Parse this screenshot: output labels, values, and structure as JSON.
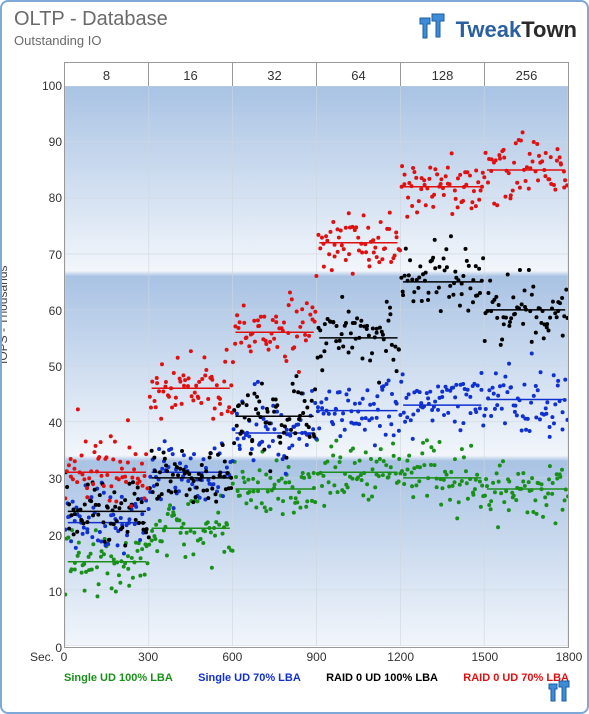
{
  "header": {
    "title": "OLTP - Database",
    "subtitle": "Outstanding IO",
    "brand_a": "Tweak",
    "brand_b": "Town"
  },
  "chart": {
    "type": "scatter",
    "xlim": [
      0,
      1800
    ],
    "ylim": [
      0,
      100
    ],
    "xtick_step": 300,
    "ytick_step": 10,
    "xlabel": "Sec.",
    "ylabel": "IOPS - Thousands",
    "frame_color": "#999999",
    "grid_color": "#cfd6df",
    "bg_gradient_top": "#a9c3e4",
    "bg_gradient_mid": "#cdd9ea",
    "bg_gradient_bot": "#f2f6fb",
    "xticks": [
      0,
      300,
      600,
      900,
      1200,
      1500,
      1800
    ],
    "yticks": [
      0,
      10,
      20,
      30,
      40,
      50,
      60,
      70,
      80,
      90,
      100
    ],
    "qd_headers": [
      "8",
      "16",
      "32",
      "64",
      "128",
      "256"
    ],
    "points_per_segment": 60,
    "jitter_sd": 3.0,
    "marker_size": 2.0,
    "baseline_width": 1.5,
    "series": [
      {
        "key": "single_100",
        "label": "Single UD 100% LBA",
        "color": "#1a8f1a",
        "segment_means": [
          15,
          21,
          28,
          31,
          30,
          28
        ]
      },
      {
        "key": "single_70",
        "label": "Single UD 70% LBA",
        "color": "#1030d0",
        "segment_means": [
          22,
          31,
          38,
          42,
          43,
          44
        ]
      },
      {
        "key": "raid_100",
        "label": "RAID 0 UD 100% LBA",
        "color": "#000000",
        "segment_means": [
          24,
          30,
          41,
          55,
          65,
          60
        ]
      },
      {
        "key": "raid_70",
        "label": "RAID 0 UD 70% LBA",
        "color": "#e01010",
        "segment_means": [
          31,
          46,
          56,
          72,
          82,
          85
        ]
      }
    ]
  },
  "legend_items": [
    {
      "label": "Single UD 100% LBA",
      "color": "#1a8f1a"
    },
    {
      "label": "Single UD 70% LBA",
      "color": "#1030d0"
    },
    {
      "label": "RAID 0 UD 100% LBA",
      "color": "#000000"
    },
    {
      "label": "RAID 0 UD 70% LBA",
      "color": "#e01010"
    }
  ],
  "logo_colors": {
    "cube_a": "#3c8cd8",
    "cube_b": "#1c5ca0",
    "shadow": "#4a4a4a"
  }
}
